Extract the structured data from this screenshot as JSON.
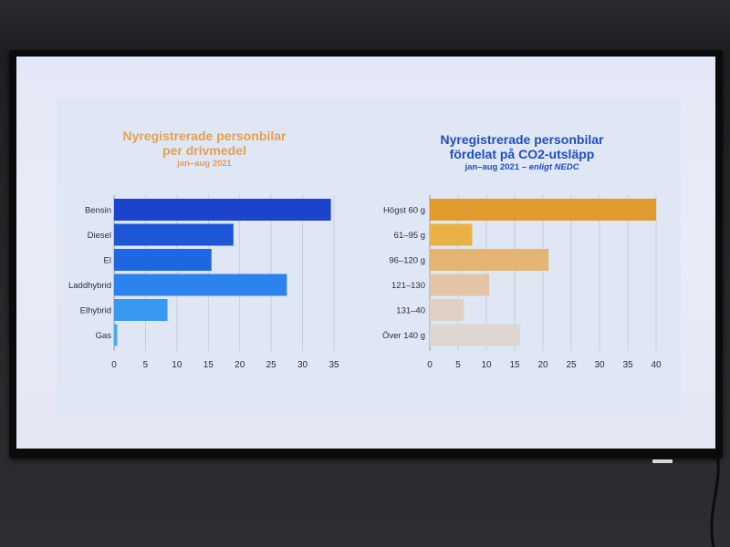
{
  "chart_data": [
    {
      "type": "bar",
      "orientation": "horizontal",
      "title": "Nyregistrerade personbilar",
      "title_line2": "per drivmedel",
      "subtitle": "jan–aug 2021",
      "categories": [
        "Bensin",
        "Diesel",
        "El",
        "Laddhybrid",
        "Elhybrid",
        "Gas"
      ],
      "values": [
        34.5,
        19,
        15.5,
        27.5,
        8.5,
        0.5
      ],
      "colors": [
        "#1b43cc",
        "#1e57d6",
        "#1f67e0",
        "#2a83ee",
        "#3799ef",
        "#4aa8f2"
      ],
      "xlim": [
        0,
        35
      ],
      "xticks": [
        "0",
        "5",
        "10",
        "15",
        "20",
        "25",
        "30",
        "35"
      ],
      "grid": true,
      "title_color": "#e5a052"
    },
    {
      "type": "bar",
      "orientation": "horizontal",
      "title": "Nyregistrerade personbilar",
      "title_line2": "fördelat på CO2-utsläpp",
      "subtitle": "jan–aug 2021 – ",
      "subtitle_italic": "enligt NEDC",
      "categories": [
        "Högst 60 g",
        "61–95 g",
        "96–120 g",
        "121–130",
        "131–40",
        "Över 140 g"
      ],
      "values": [
        40,
        7.5,
        21,
        10.5,
        6,
        16
      ],
      "colors": [
        "#e19a2c",
        "#e7b143",
        "#e3b473",
        "#e3c5a6",
        "#dfd2c4",
        "#ddd6d1"
      ],
      "xlim": [
        0,
        40
      ],
      "xticks": [
        "0",
        "5",
        "10",
        "15",
        "20",
        "25",
        "30",
        "35",
        "40"
      ],
      "grid": true,
      "title_color": "#1f4fc0"
    }
  ]
}
